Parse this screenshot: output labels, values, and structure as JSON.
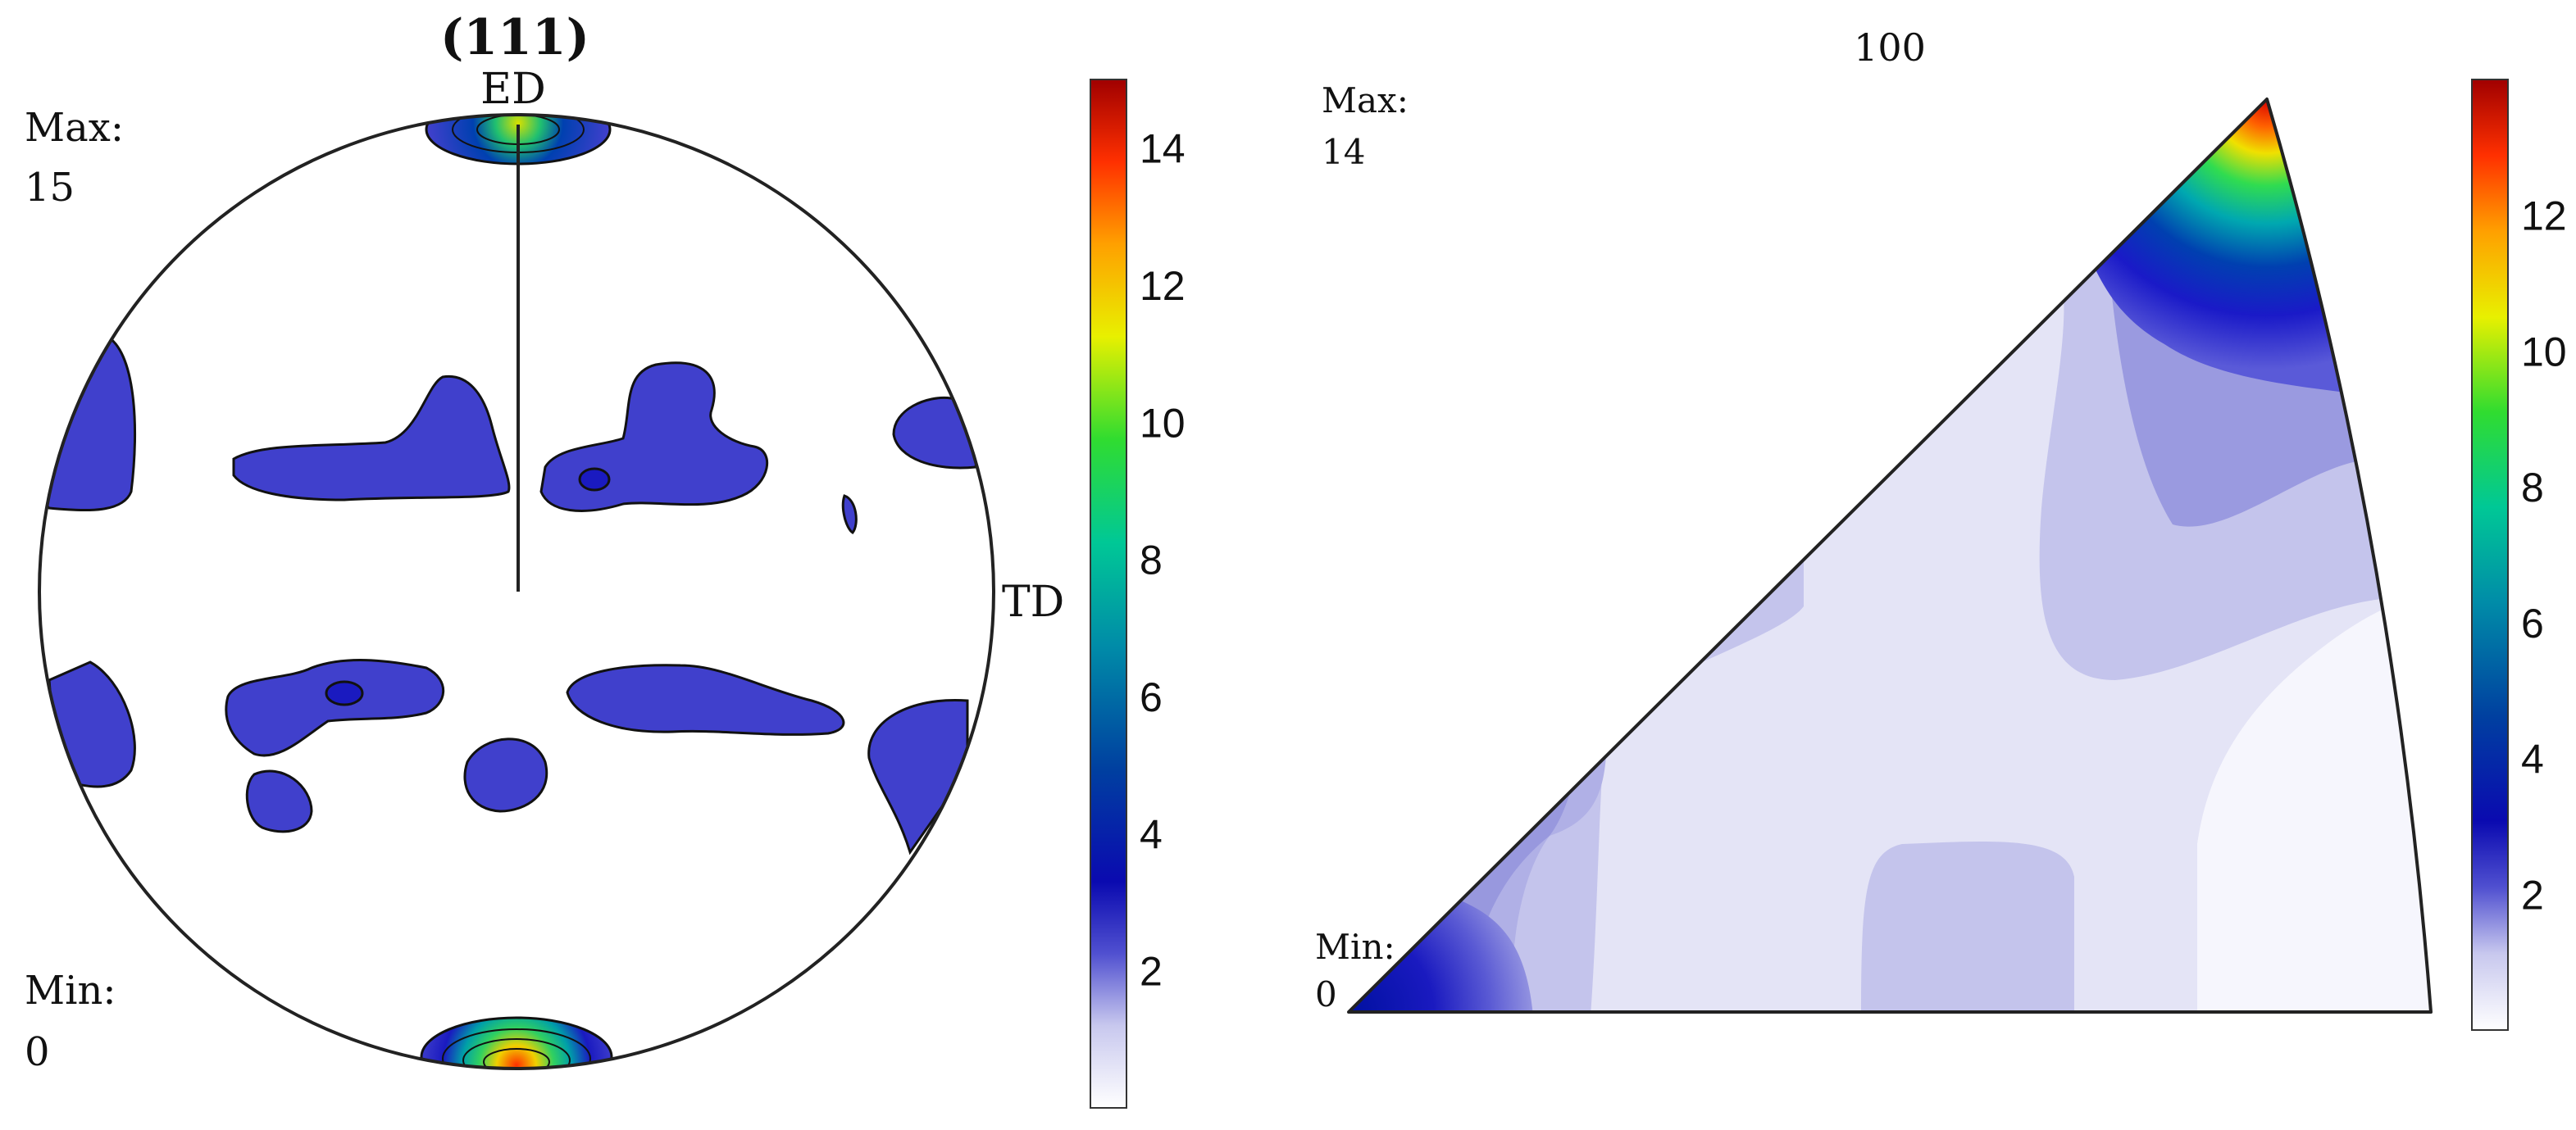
{
  "pole_figure": {
    "title": "(111)",
    "top_label": "ED",
    "right_label": "TD",
    "max_label": "Max:",
    "max_value": "15",
    "min_label": "Min:",
    "min_value": "0",
    "colorbar": {
      "ticks": [
        "2",
        "4",
        "6",
        "8",
        "10",
        "12",
        "14"
      ],
      "tick_values": [
        2,
        4,
        6,
        8,
        10,
        12,
        14
      ],
      "range": [
        0,
        15
      ]
    }
  },
  "inverse_pole_figure": {
    "title": "100",
    "max_label": "Max:",
    "max_value": "14",
    "min_label": "Min:",
    "min_value": "0",
    "colorbar": {
      "ticks": [
        "2",
        "4",
        "6",
        "8",
        "10",
        "12"
      ],
      "tick_values": [
        2,
        4,
        6,
        8,
        10,
        12
      ],
      "range": [
        0,
        14
      ]
    }
  },
  "colors": {
    "contour_fill": "#4040cc",
    "outline": "#111111",
    "colormap": [
      "#ffffff",
      "#dcdcf2",
      "#aaaae0",
      "#6a6ad6",
      "#1a1ac0",
      "#00189a",
      "#005bb0",
      "#00a8a0",
      "#00d27a",
      "#6ee00a",
      "#f0f000",
      "#ffa000",
      "#ff3c00",
      "#c80000",
      "#a00000"
    ]
  }
}
